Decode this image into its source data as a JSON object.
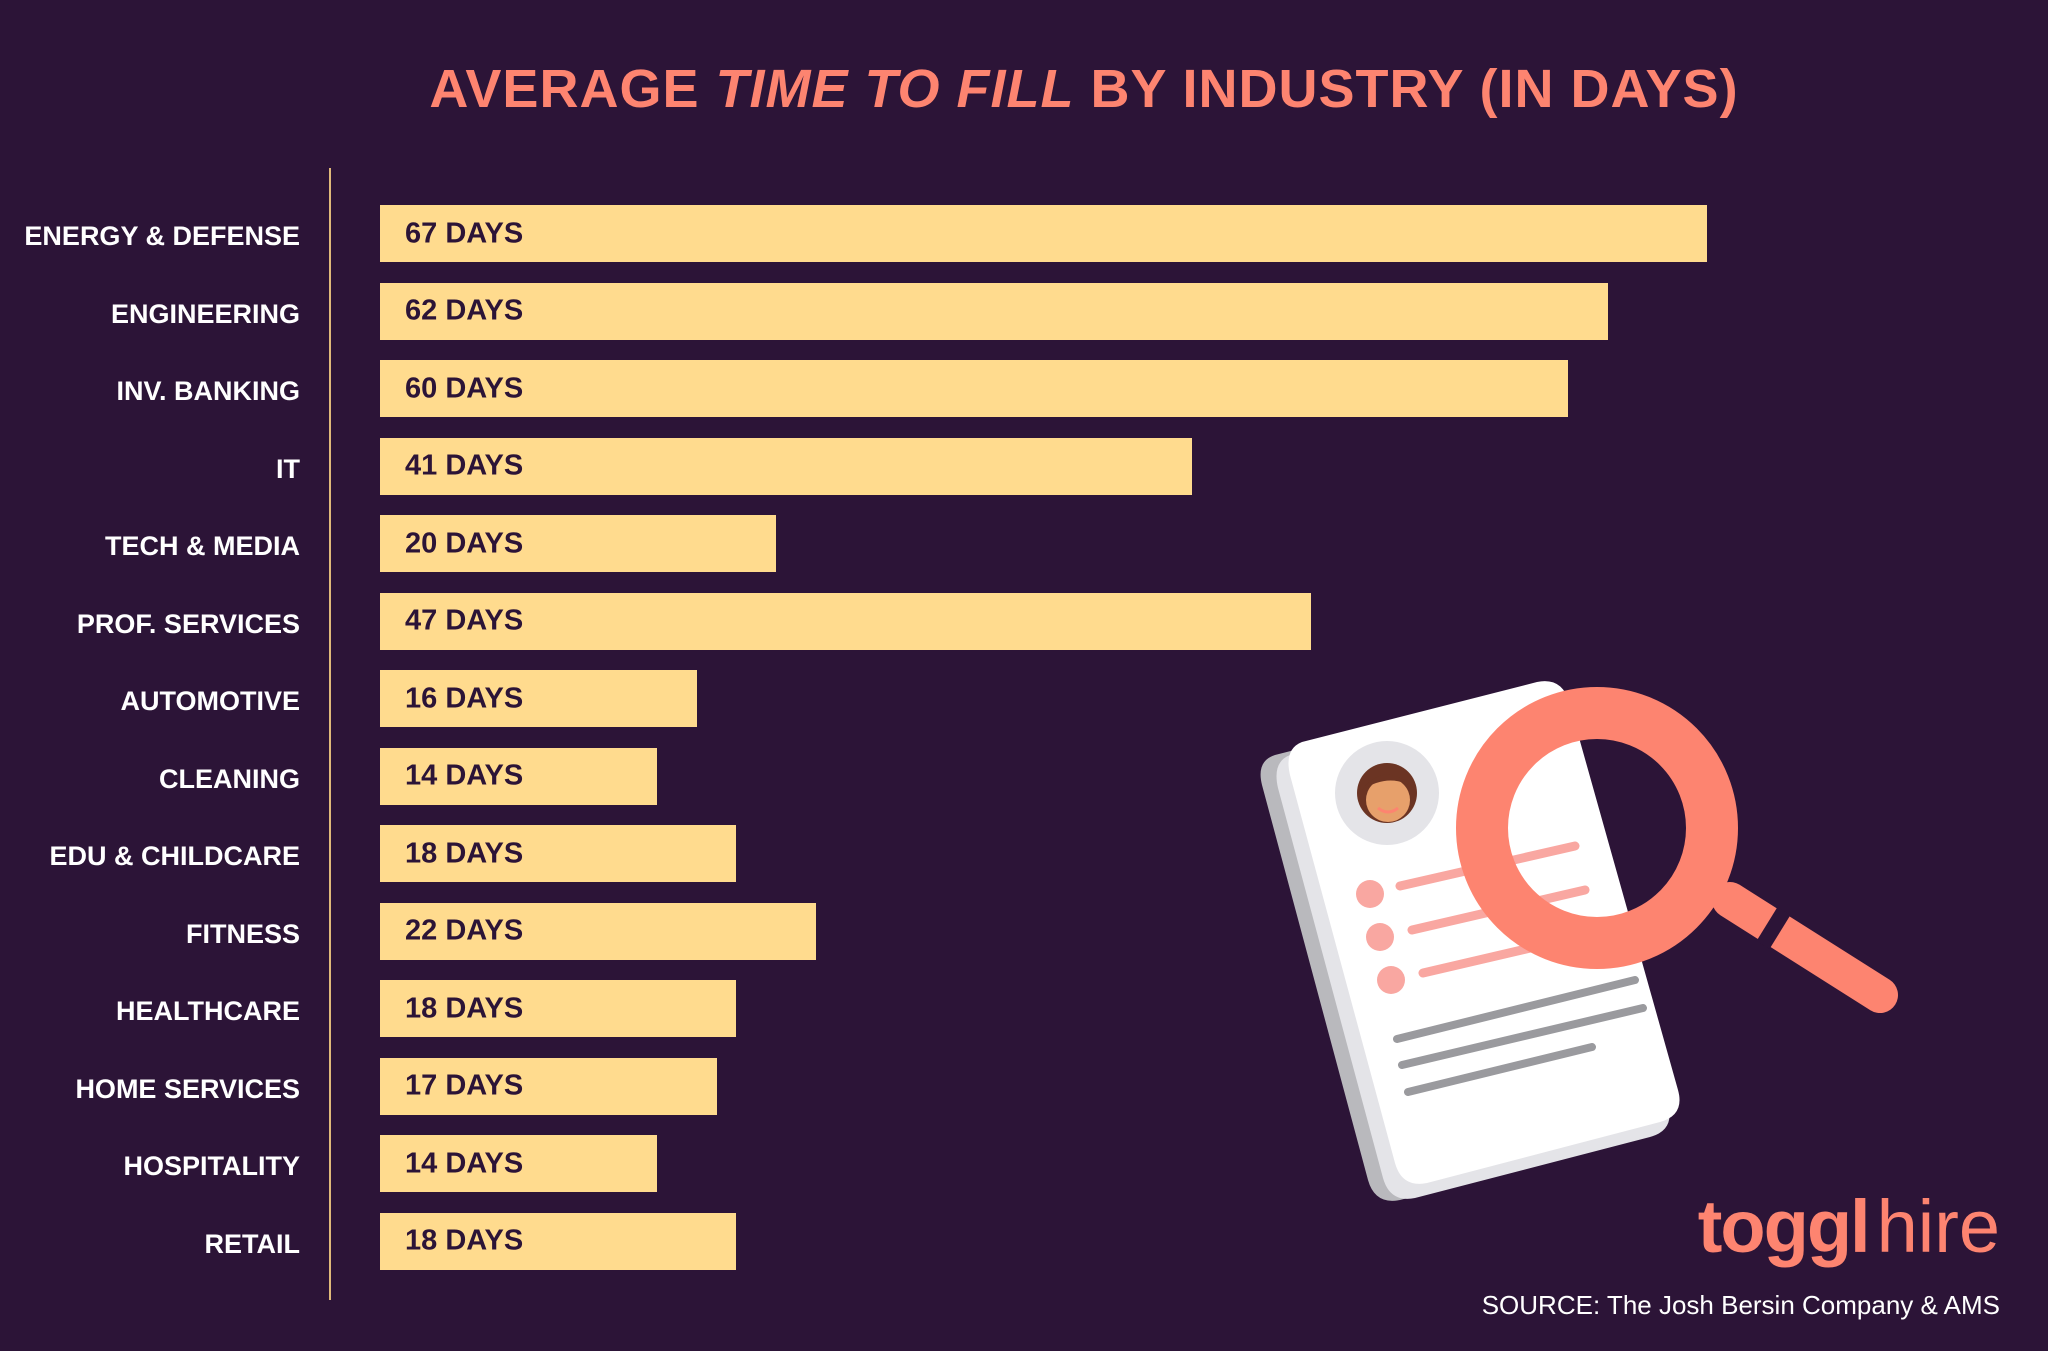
{
  "chart_data": {
    "type": "bar",
    "orientation": "horizontal",
    "title_parts": [
      "AVERAGE ",
      "TIME TO FILL",
      " BY INDUSTRY (IN DAYS)"
    ],
    "categories": [
      "ENERGY & DEFENSE",
      "ENGINEERING",
      "INV. BANKING",
      "IT",
      "TECH & MEDIA",
      "PROF. SERVICES",
      "AUTOMOTIVE",
      "CLEANING",
      "EDU & CHILDCARE",
      "FITNESS",
      "HEALTHCARE",
      "HOME SERVICES",
      "HOSPITALITY",
      "RETAIL"
    ],
    "values": [
      67,
      62,
      60,
      41,
      20,
      47,
      16,
      14,
      18,
      22,
      18,
      17,
      14,
      18
    ],
    "data_labels": [
      "67 DAYS",
      "62 DAYS",
      "60 DAYS",
      "41 DAYS",
      "20 DAYS",
      "47 DAYS",
      "16 DAYS",
      "14 DAYS",
      "18 DAYS",
      "22 DAYS",
      "18 DAYS",
      "17 DAYS",
      "14 DAYS",
      "18 DAYS"
    ],
    "grid": false,
    "colors": {
      "bar": "#ffdb8e",
      "title": "#fd8470",
      "background": "#2c1437"
    }
  },
  "logo": {
    "brand": "toggl",
    "product": "hire"
  },
  "source": "SOURCE: The Josh Bersin Company & AMS",
  "illustration": {
    "icons": [
      "resume-document-icon",
      "magnifying-glass-icon",
      "avatar-icon"
    ]
  }
}
